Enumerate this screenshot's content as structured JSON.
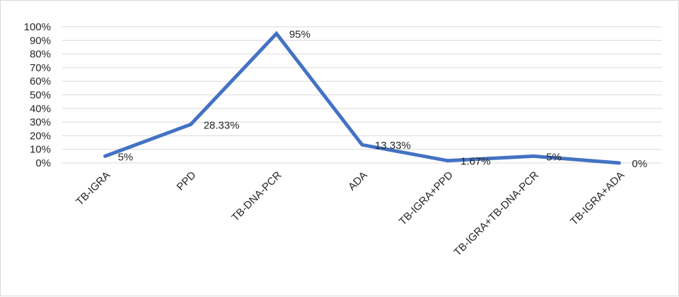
{
  "chart_data": {
    "type": "line",
    "title": "",
    "xlabel": "",
    "ylabel": "",
    "categories": [
      "TB-IGRA",
      "PPD",
      "TB-DNA-PCR",
      "ADA",
      "TB-IGRA+PPD",
      "TB-IGRA+TB-DNA-PCR",
      "TB-IGRA+ADA"
    ],
    "series": [
      {
        "values": [
          5,
          28.33,
          95,
          13.33,
          1.67,
          5,
          0
        ],
        "data_labels": [
          "5%",
          "28.33%",
          "95%",
          "13.33%",
          "1.67%",
          "5%",
          "0%"
        ]
      }
    ],
    "ylim": [
      0,
      100
    ],
    "y_ticks": [
      "0%",
      "10%",
      "20%",
      "30%",
      "40%",
      "50%",
      "60%",
      "70%",
      "80%",
      "90%",
      "100%"
    ],
    "grid": true,
    "legend": "none",
    "colors": {
      "line": "#4472c4",
      "grid": "#d9d9d9",
      "text": "#262626"
    }
  }
}
